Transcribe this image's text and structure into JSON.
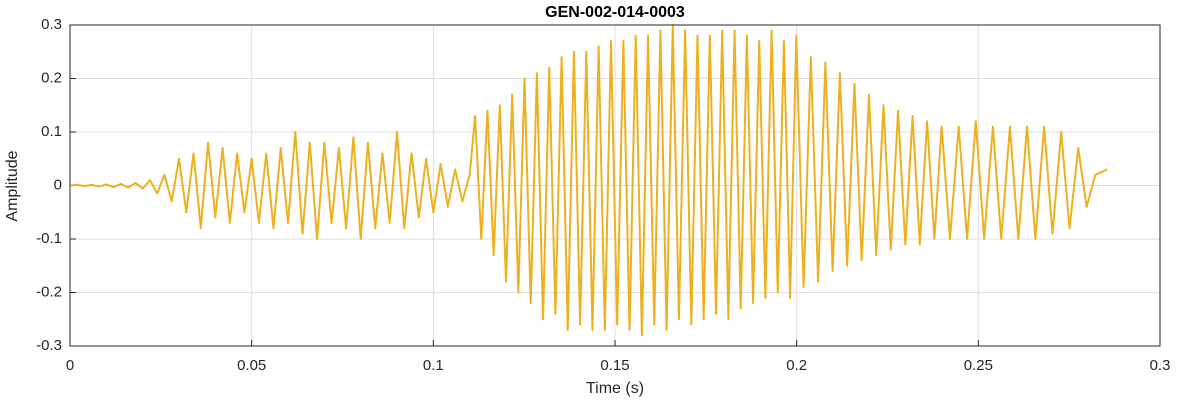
{
  "chart_data": {
    "type": "line",
    "title": "GEN-002-014-0003",
    "x_label": "Time (s)",
    "y_label": "Amplitude",
    "xlim": [
      0,
      0.3
    ],
    "xticks": [
      0,
      0.05,
      0.1,
      0.15,
      0.2,
      0.25,
      0.3
    ],
    "ylim": [
      -0.3,
      0.3
    ],
    "yticks": [
      -0.3,
      -0.2,
      -0.1,
      0,
      0.1,
      0.2,
      0.3
    ],
    "grid": true,
    "series": [
      {
        "color": "#EDB120",
        "x": [
          0,
          0.002,
          0.004,
          0.006,
          0.008,
          0.01,
          0.012,
          0.014,
          0.016,
          0.018,
          0.02,
          0.022,
          0.024,
          0.026,
          0.028,
          0.03,
          0.032,
          0.034,
          0.036,
          0.038,
          0.04,
          0.042,
          0.044,
          0.046,
          0.048,
          0.05,
          0.052,
          0.054,
          0.056,
          0.058,
          0.06,
          0.062,
          0.064,
          0.066,
          0.068,
          0.07,
          0.072,
          0.074,
          0.076,
          0.078,
          0.08,
          0.082,
          0.084,
          0.086,
          0.088,
          0.09,
          0.092,
          0.094,
          0.096,
          0.098,
          0.1,
          0.102,
          0.104,
          0.106,
          0.108,
          0.11,
          0.1115,
          0.1132,
          0.1149,
          0.1166,
          0.1183,
          0.12,
          0.1217,
          0.1234,
          0.1251,
          0.1268,
          0.1285,
          0.1302,
          0.1319,
          0.1336,
          0.1353,
          0.137,
          0.1387,
          0.1404,
          0.1421,
          0.1438,
          0.1455,
          0.1472,
          0.1489,
          0.1506,
          0.1523,
          0.154,
          0.1557,
          0.1574,
          0.1591,
          0.1608,
          0.1625,
          0.1642,
          0.1659,
          0.1676,
          0.1693,
          0.171,
          0.1727,
          0.1744,
          0.1761,
          0.1778,
          0.1795,
          0.1812,
          0.1829,
          0.1846,
          0.1863,
          0.188,
          0.1897,
          0.1914,
          0.1931,
          0.1948,
          0.1965,
          0.1982,
          0.1999,
          0.2019,
          0.2039,
          0.2059,
          0.2079,
          0.2099,
          0.2119,
          0.2139,
          0.2159,
          0.2179,
          0.2199,
          0.2219,
          0.2239,
          0.2259,
          0.2279,
          0.2299,
          0.2319,
          0.2339,
          0.2359,
          0.2379,
          0.2399,
          0.2422,
          0.2446,
          0.2469,
          0.2493,
          0.2516,
          0.254,
          0.2563,
          0.2587,
          0.261,
          0.2634,
          0.2657,
          0.2681,
          0.2704,
          0.2728,
          0.2751,
          0.2775,
          0.2798,
          0.2822,
          0.2855
        ],
        "values": [
          0,
          0.001,
          -0.001,
          0.001,
          -0.002,
          0.002,
          -0.003,
          0.003,
          -0.004,
          0.005,
          -0.006,
          0.01,
          -0.015,
          0.02,
          -0.03,
          0.05,
          -0.05,
          0.06,
          -0.08,
          0.08,
          -0.06,
          0.07,
          -0.07,
          0.06,
          -0.05,
          0.05,
          -0.07,
          0.06,
          -0.08,
          0.07,
          -0.07,
          0.1,
          -0.09,
          0.08,
          -0.1,
          0.08,
          -0.07,
          0.07,
          -0.08,
          0.09,
          -0.1,
          0.08,
          -0.08,
          0.06,
          -0.07,
          0.1,
          -0.08,
          0.06,
          -0.06,
          0.05,
          -0.05,
          0.04,
          -0.04,
          0.03,
          -0.03,
          0.02,
          0.13,
          -0.1,
          0.14,
          -0.13,
          0.15,
          -0.18,
          0.17,
          -0.2,
          0.2,
          -0.22,
          0.21,
          -0.25,
          0.22,
          -0.24,
          0.24,
          -0.27,
          0.25,
          -0.26,
          0.25,
          -0.27,
          0.26,
          -0.27,
          0.27,
          -0.26,
          0.27,
          -0.27,
          0.28,
          -0.28,
          0.28,
          -0.26,
          0.29,
          -0.27,
          0.3,
          -0.25,
          0.29,
          -0.26,
          0.28,
          -0.25,
          0.28,
          -0.24,
          0.29,
          -0.25,
          0.29,
          -0.23,
          0.28,
          -0.22,
          0.27,
          -0.21,
          0.29,
          -0.2,
          0.27,
          -0.21,
          0.28,
          -0.19,
          0.24,
          -0.18,
          0.23,
          -0.16,
          0.21,
          -0.15,
          0.19,
          -0.14,
          0.17,
          -0.13,
          0.15,
          -0.12,
          0.14,
          -0.11,
          0.13,
          -0.11,
          0.12,
          -0.1,
          0.11,
          -0.1,
          0.11,
          -0.1,
          0.12,
          -0.1,
          0.11,
          -0.1,
          0.11,
          -0.1,
          0.11,
          -0.1,
          0.11,
          -0.09,
          0.1,
          -0.08,
          0.07,
          -0.04,
          0.02,
          0.03
        ]
      }
    ]
  }
}
